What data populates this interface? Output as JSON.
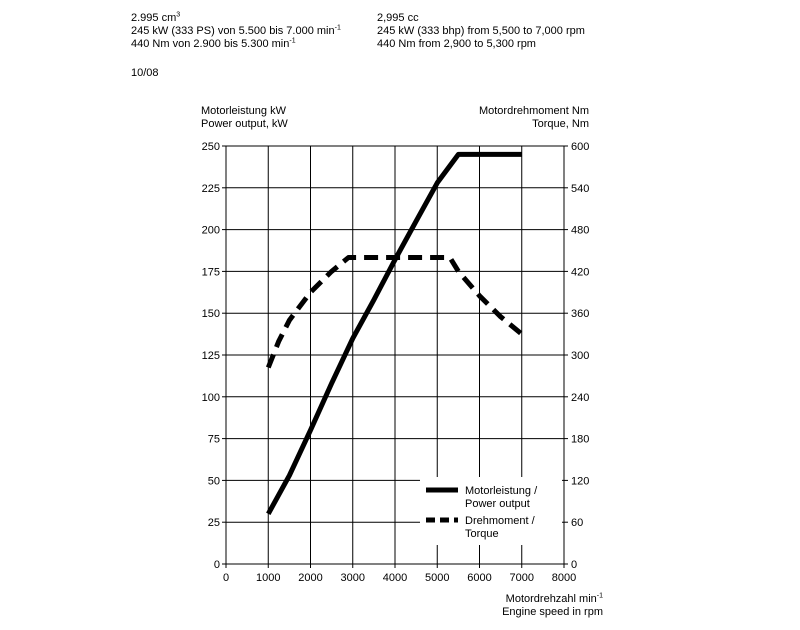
{
  "specs_de": {
    "displacement": "2.995 cm",
    "displacement_sup": "3",
    "power": "245 kW (333 PS) von 5.500 bis 7.000 min",
    "power_sup": "-1",
    "torque": "440 Nm von 2.900 bis 5.300 min",
    "torque_sup": "-1"
  },
  "specs_en": {
    "displacement": "2,995 cc",
    "power": "245 kW (333 bhp) from 5,500 to 7,000 rpm",
    "torque": "440 Nm from 2,900 to 5,300 rpm"
  },
  "date": "10/08",
  "chart_data": {
    "type": "line",
    "ylabel_left": [
      "Motorleistung kW",
      "Power output, kW"
    ],
    "ylabel_right": [
      "Motordrehmoment Nm",
      "Torque, Nm"
    ],
    "xlabel_line1": "Motordrehzahl min",
    "xlabel_line1_sup": "-1",
    "xlabel_line2": "Engine speed in rpm",
    "xlim": [
      0,
      8000
    ],
    "ylim_left": [
      0,
      250
    ],
    "ylim_right": [
      0,
      600
    ],
    "x_ticks": [
      "0",
      "1000",
      "2000",
      "3000",
      "4000",
      "5000",
      "6000",
      "7000",
      "8000"
    ],
    "y_ticks_left": [
      "0",
      "25",
      "50",
      "75",
      "100",
      "125",
      "150",
      "175",
      "200",
      "225",
      "250"
    ],
    "y_ticks_right": [
      "0",
      "60",
      "120",
      "180",
      "240",
      "300",
      "360",
      "420",
      "480",
      "540",
      "600"
    ],
    "grid": true,
    "legend_position": "bottom-right",
    "series": [
      {
        "name": "Motorleistung / Power output",
        "legend_lines": [
          "Motorleistung /",
          "Power output"
        ],
        "axis": "left",
        "style": "solid",
        "x": [
          1000,
          1500,
          2000,
          2500,
          3000,
          3500,
          4000,
          4500,
          5000,
          5500,
          6000,
          6500,
          7000
        ],
        "y": [
          30,
          53,
          80,
          108,
          135,
          158,
          182,
          205,
          228,
          245,
          245,
          245,
          245
        ]
      },
      {
        "name": "Drehmoment / Torque",
        "legend_lines": [
          "Drehmoment /",
          "Torque"
        ],
        "axis": "right",
        "style": "dashed",
        "x": [
          1000,
          1250,
          1500,
          2000,
          2500,
          2900,
          3500,
          4000,
          4500,
          5000,
          5300,
          5500,
          6000,
          6500,
          7000
        ],
        "y": [
          282,
          320,
          350,
          390,
          420,
          440,
          440,
          440,
          440,
          440,
          440,
          420,
          385,
          355,
          330
        ]
      }
    ]
  }
}
